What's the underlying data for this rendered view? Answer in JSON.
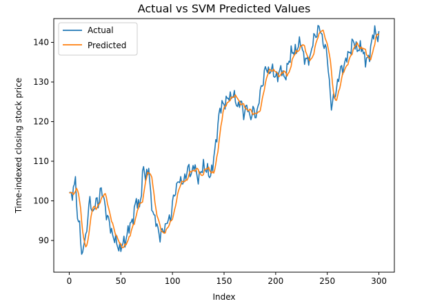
{
  "chart_data": {
    "type": "line",
    "title": "Actual vs SVM Predicted Values",
    "xlabel": "Index",
    "ylabel": "Time-indexed closing stock price",
    "xlim": [
      -15,
      315
    ],
    "ylim": [
      82,
      146
    ],
    "xticks": [
      0,
      50,
      100,
      150,
      200,
      250,
      300
    ],
    "yticks": [
      90,
      100,
      110,
      120,
      130,
      140
    ],
    "grid": false,
    "legend_position": "top-left",
    "keypoints": [
      [
        0,
        101
      ],
      [
        3,
        102
      ],
      [
        5,
        104
      ],
      [
        6,
        106
      ],
      [
        8,
        94
      ],
      [
        10,
        96
      ],
      [
        12,
        85
      ],
      [
        14,
        89
      ],
      [
        16,
        91
      ],
      [
        18,
        96
      ],
      [
        20,
        100
      ],
      [
        23,
        97
      ],
      [
        26,
        100
      ],
      [
        28,
        99
      ],
      [
        30,
        103
      ],
      [
        33,
        101
      ],
      [
        36,
        97
      ],
      [
        40,
        93
      ],
      [
        43,
        91
      ],
      [
        46,
        89
      ],
      [
        50,
        88
      ],
      [
        54,
        90
      ],
      [
        58,
        93
      ],
      [
        62,
        96
      ],
      [
        65,
        100
      ],
      [
        68,
        99
      ],
      [
        70,
        102
      ],
      [
        72,
        109
      ],
      [
        74,
        106
      ],
      [
        77,
        108
      ],
      [
        79,
        101
      ],
      [
        82,
        96
      ],
      [
        86,
        93
      ],
      [
        88,
        91
      ],
      [
        92,
        93
      ],
      [
        95,
        95
      ],
      [
        98,
        95
      ],
      [
        100,
        100
      ],
      [
        103,
        102
      ],
      [
        106,
        106
      ],
      [
        109,
        104
      ],
      [
        112,
        106
      ],
      [
        115,
        108
      ],
      [
        118,
        107
      ],
      [
        121,
        109
      ],
      [
        124,
        106
      ],
      [
        128,
        107
      ],
      [
        130,
        109
      ],
      [
        133,
        108
      ],
      [
        136,
        106
      ],
      [
        139,
        109
      ],
      [
        142,
        114
      ],
      [
        145,
        122
      ],
      [
        148,
        124
      ],
      [
        151,
        125
      ],
      [
        155,
        126
      ],
      [
        158,
        127
      ],
      [
        160,
        126
      ],
      [
        163,
        124
      ],
      [
        166,
        125
      ],
      [
        169,
        122
      ],
      [
        172,
        124
      ],
      [
        175,
        121
      ],
      [
        178,
        123
      ],
      [
        181,
        121
      ],
      [
        184,
        126
      ],
      [
        187,
        129
      ],
      [
        190,
        134
      ],
      [
        193,
        132
      ],
      [
        196,
        134
      ],
      [
        199,
        131
      ],
      [
        202,
        132
      ],
      [
        206,
        133
      ],
      [
        209,
        131
      ],
      [
        212,
        134
      ],
      [
        215,
        138
      ],
      [
        218,
        137
      ],
      [
        221,
        139
      ],
      [
        224,
        140
      ],
      [
        227,
        137
      ],
      [
        230,
        135
      ],
      [
        233,
        136
      ],
      [
        236,
        140
      ],
      [
        239,
        142
      ],
      [
        242,
        144
      ],
      [
        245,
        141
      ],
      [
        248,
        139
      ],
      [
        250,
        136
      ],
      [
        252,
        130
      ],
      [
        254,
        124
      ],
      [
        257,
        126
      ],
      [
        260,
        130
      ],
      [
        263,
        133
      ],
      [
        266,
        134
      ],
      [
        269,
        136
      ],
      [
        272,
        138
      ],
      [
        275,
        140
      ],
      [
        278,
        139
      ],
      [
        281,
        138
      ],
      [
        284,
        139
      ],
      [
        287,
        135
      ],
      [
        290,
        136
      ],
      [
        293,
        140
      ],
      [
        296,
        143
      ],
      [
        300,
        141
      ]
    ],
    "series": [
      {
        "name": "Actual",
        "color": "#1f77b4",
        "values": []
      },
      {
        "name": "Predicted",
        "color": "#ff7f0e",
        "values": []
      }
    ]
  }
}
